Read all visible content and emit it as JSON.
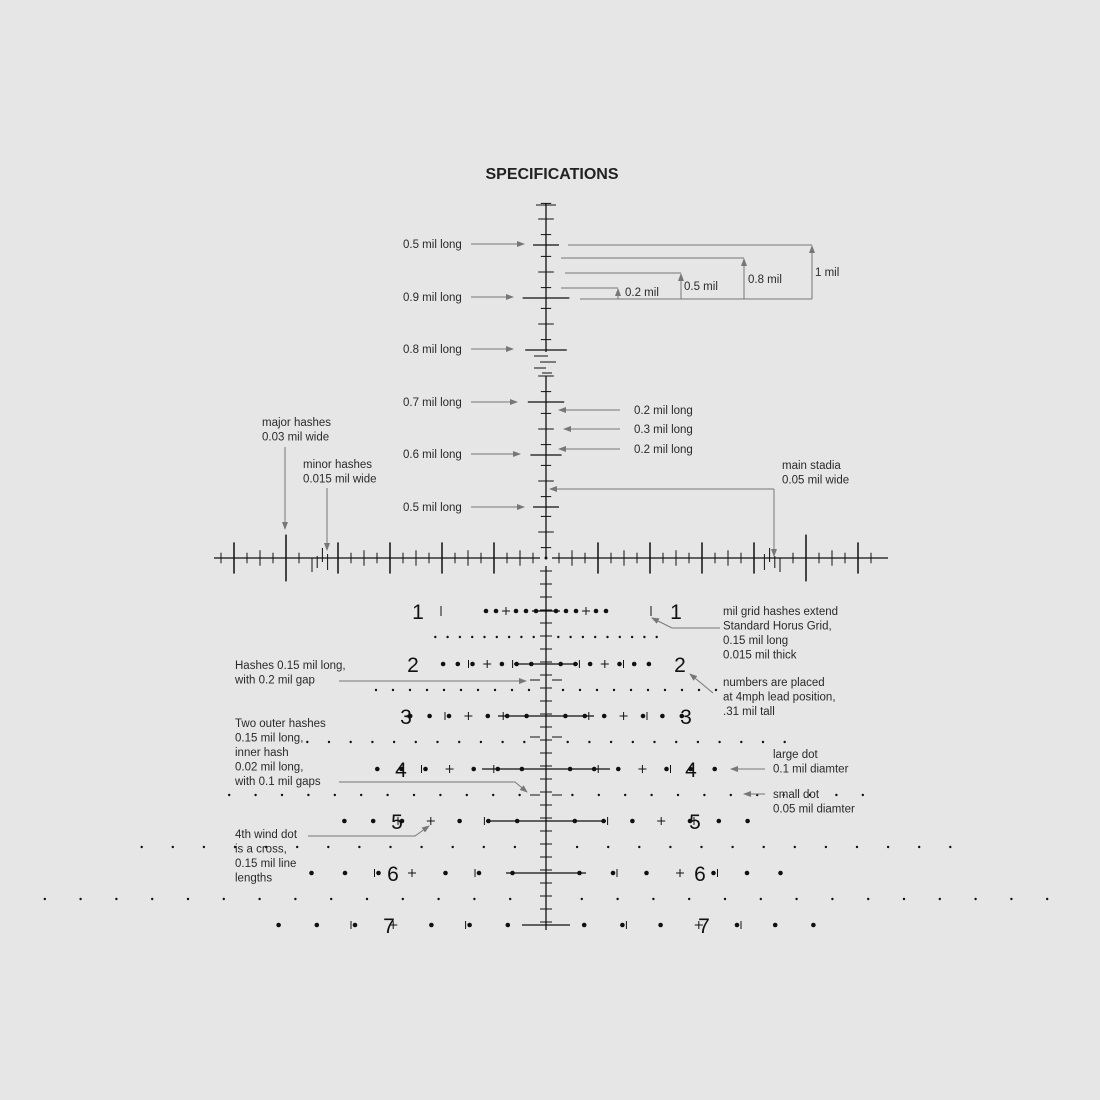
{
  "title": "SPECIFICATIONS",
  "colors": {
    "background": "#e6e6e6",
    "reticle": "#111111",
    "annotation": "#777777"
  },
  "upper_left_labels": [
    "0.5 mil long",
    "0.9 mil long",
    "0.8 mil long",
    "0.7 mil long",
    "0.6 mil long",
    "0.5 mil long"
  ],
  "upper_right_labels": [
    "0.2 mil long",
    "0.3 mil long",
    "0.2 mil long"
  ],
  "brackets": [
    "1 mil",
    "0.8 mil",
    "0.5 mil",
    "0.2 mil"
  ],
  "major_hashes": [
    "major hashes",
    "0.03 mil wide"
  ],
  "minor_hashes": [
    "minor hashes",
    "0.015 mil wide"
  ],
  "main_stadia": [
    "main stadia",
    "0.05 mil wide"
  ],
  "grid_hashes": [
    "mil grid hashes extend",
    "Standard Horus Grid,",
    "0.15 mil long",
    "0.015 mil thick"
  ],
  "numbers_note": [
    "numbers are placed",
    "at 4mph lead position,",
    ".31 mil tall"
  ],
  "hashes_gap": [
    "Hashes 0.15 mil long,",
    "with 0.2 mil gap"
  ],
  "outer_hashes": [
    "Two outer hashes",
    "0.15 mil long,",
    "inner hash",
    "0.02 mil long,",
    "with 0.1 mil gaps"
  ],
  "large_dot": [
    "large dot",
    "0.1 mil diamter"
  ],
  "small_dot": [
    "small dot",
    "0.05 mil diamter"
  ],
  "wind_dot": [
    "4th wind dot",
    "is a cross,",
    "0.15 mil line",
    "lengths"
  ],
  "row_numbers": [
    "1",
    "2",
    "3",
    "4",
    "5",
    "6",
    "7"
  ]
}
